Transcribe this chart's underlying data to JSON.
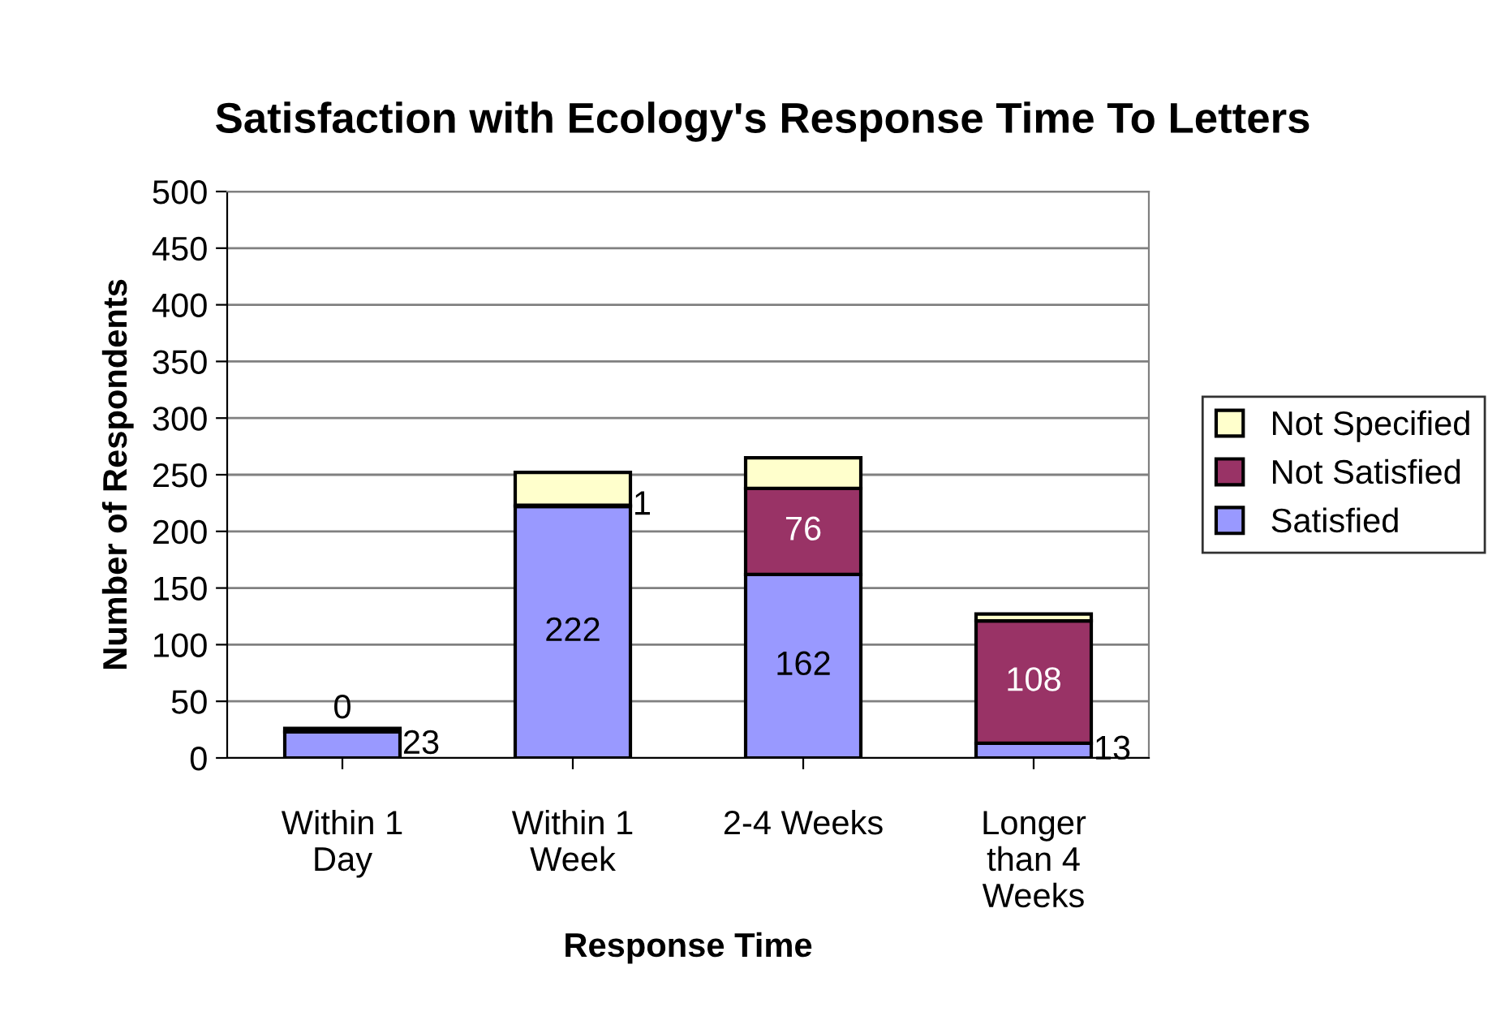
{
  "chart_data": {
    "type": "bar",
    "stacked": true,
    "title": "Satisfaction with Ecology's Response Time To Letters",
    "xlabel": "Response Time",
    "ylabel": "Number of Respondents",
    "categories": [
      "Within 1\nDay",
      "Within 1\nWeek",
      "2-4 Weeks",
      "Longer\nthan 4\nWeeks"
    ],
    "series": [
      {
        "name": "Satisfied",
        "color": "#9999ff",
        "values": [
          23,
          222,
          162,
          13
        ],
        "value_labels": [
          "23",
          "222",
          "162",
          "13"
        ]
      },
      {
        "name": "Not Satisfied",
        "color": "#993366",
        "values": [
          0,
          1,
          76,
          108
        ],
        "value_labels": [
          "0",
          "1",
          "76",
          "108"
        ]
      },
      {
        "name": "Not Specified",
        "color": "#ffffcc",
        "values": [
          3,
          29,
          27,
          6
        ]
      }
    ],
    "ylim": [
      0,
      500
    ],
    "yticks": [
      0,
      50,
      100,
      150,
      200,
      250,
      300,
      350,
      400,
      450,
      500
    ],
    "grid": "y",
    "legend": "right"
  }
}
